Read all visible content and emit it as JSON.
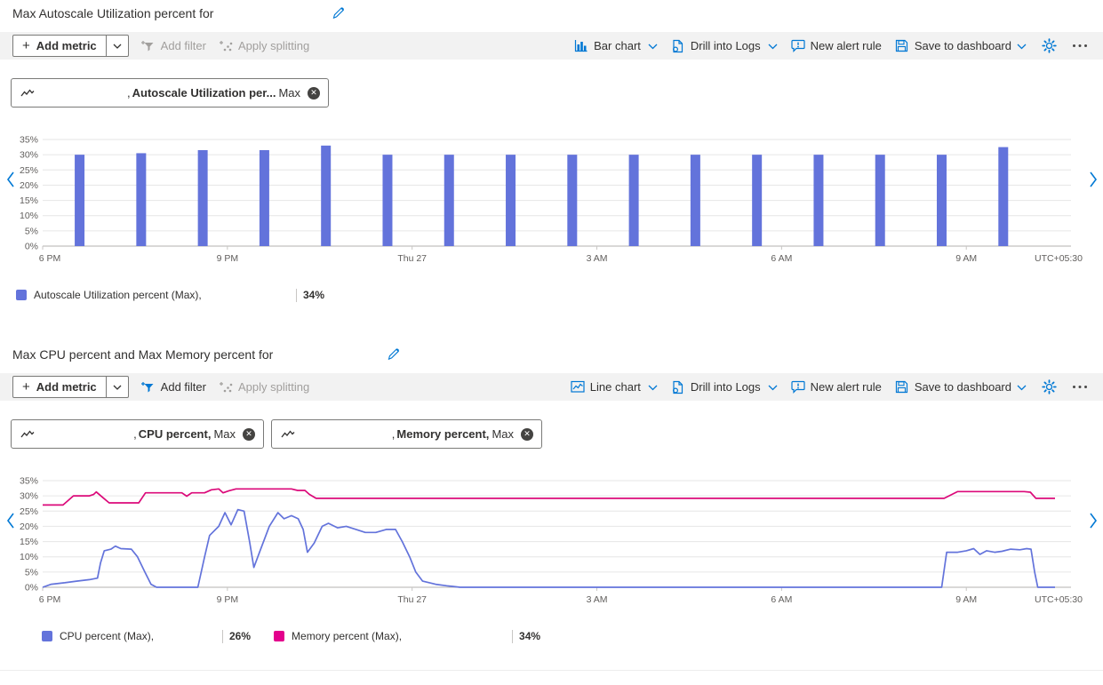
{
  "colors": {
    "accent_blue": "#0078d4",
    "series_blue": "#6373db",
    "series_pink": "#db0979",
    "legend_pink": "#e3008c",
    "toolbar_bg": "#f2f2f2",
    "disabled_gray": "#a19f9d"
  },
  "sections": [
    {
      "title": "Max Autoscale Utilization percent for",
      "toolbar": {
        "add_metric": "Add metric",
        "add_filter": "Add filter",
        "apply_splitting": "Apply splitting",
        "chart_type": "Bar chart",
        "drill_into_logs": "Drill into Logs",
        "new_alert_rule": "New alert rule",
        "save_to_dashboard": "Save to dashboard"
      },
      "pills": [
        {
          "prefix": ",",
          "metric": "Autoscale Utilization per...",
          "aggregation": "Max"
        }
      ],
      "legend": [
        {
          "label": "Autoscale Utilization percent (Max),",
          "value": "34%",
          "color": "#6373db"
        }
      ]
    },
    {
      "title": "Max CPU percent and Max Memory percent for",
      "toolbar": {
        "add_metric": "Add metric",
        "add_filter": "Add filter",
        "apply_splitting": "Apply splitting",
        "chart_type": "Line chart",
        "drill_into_logs": "Drill into Logs",
        "new_alert_rule": "New alert rule",
        "save_to_dashboard": "Save to dashboard"
      },
      "pills": [
        {
          "prefix": ",",
          "metric": "CPU percent,",
          "aggregation": "Max"
        },
        {
          "prefix": ",",
          "metric": "Memory percent,",
          "aggregation": "Max"
        }
      ],
      "legend": [
        {
          "label": "CPU percent (Max),",
          "value": "26%",
          "color": "#6373db"
        },
        {
          "label": "Memory percent (Max),",
          "value": "34%",
          "color": "#e3008c"
        }
      ]
    }
  ],
  "chart_data": [
    {
      "type": "bar",
      "title": "Max Autoscale Utilization percent",
      "ylabel": "%",
      "ylim": [
        0,
        35
      ],
      "ytick_step": 5,
      "x_hours_range": [
        0,
        16.7
      ],
      "x_ticks": [
        {
          "hour": 0,
          "label": "6 PM"
        },
        {
          "hour": 3,
          "label": "9 PM"
        },
        {
          "hour": 6,
          "label": "Thu 27"
        },
        {
          "hour": 9,
          "label": "3 AM"
        },
        {
          "hour": 12,
          "label": "6 AM"
        },
        {
          "hour": 15,
          "label": "9 AM"
        }
      ],
      "timezone_label": "UTC+05:30",
      "grid": true,
      "series": [
        {
          "name": "Autoscale Utilization percent (Max)",
          "color": "#6373db",
          "points": [
            [
              0.6,
              30
            ],
            [
              1.6,
              30.5
            ],
            [
              2.6,
              31.5
            ],
            [
              3.6,
              31.5
            ],
            [
              4.6,
              33
            ],
            [
              5.6,
              30
            ],
            [
              6.6,
              30
            ],
            [
              7.6,
              30
            ],
            [
              8.6,
              30
            ],
            [
              9.6,
              30
            ],
            [
              10.6,
              30
            ],
            [
              11.6,
              30
            ],
            [
              12.6,
              30
            ],
            [
              13.6,
              30
            ],
            [
              14.6,
              30
            ],
            [
              15.6,
              32.5
            ]
          ]
        }
      ]
    },
    {
      "type": "line",
      "title": "Max CPU percent and Max Memory percent",
      "ylabel": "%",
      "ylim": [
        0,
        35
      ],
      "ytick_step": 5,
      "x_hours_range": [
        0,
        16.7
      ],
      "x_ticks": [
        {
          "hour": 0,
          "label": "6 PM"
        },
        {
          "hour": 3,
          "label": "9 PM"
        },
        {
          "hour": 6,
          "label": "Thu 27"
        },
        {
          "hour": 9,
          "label": "3 AM"
        },
        {
          "hour": 12,
          "label": "6 AM"
        },
        {
          "hour": 15,
          "label": "9 AM"
        }
      ],
      "timezone_label": "UTC+05:30",
      "grid": true,
      "series": [
        {
          "name": "CPU percent (Max)",
          "color": "#6373db",
          "points": [
            [
              0,
              0
            ],
            [
              0.14,
              1
            ],
            [
              0.36,
              1.5
            ],
            [
              0.55,
              2
            ],
            [
              0.76,
              2.5
            ],
            [
              0.89,
              3
            ],
            [
              0.94,
              8
            ],
            [
              1,
              12
            ],
            [
              1.11,
              12.5
            ],
            [
              1.18,
              13.5
            ],
            [
              1.27,
              12.7
            ],
            [
              1.44,
              12.5
            ],
            [
              1.54,
              10
            ],
            [
              1.66,
              5
            ],
            [
              1.76,
              1
            ],
            [
              1.85,
              0
            ],
            [
              2.52,
              0
            ],
            [
              2.63,
              10
            ],
            [
              2.71,
              17
            ],
            [
              2.86,
              20
            ],
            [
              2.96,
              24.5
            ],
            [
              3.06,
              20.5
            ],
            [
              3.17,
              25.5
            ],
            [
              3.27,
              25
            ],
            [
              3.36,
              15
            ],
            [
              3.43,
              6.5
            ],
            [
              3.53,
              12
            ],
            [
              3.68,
              20
            ],
            [
              3.82,
              24.5
            ],
            [
              3.92,
              22.5
            ],
            [
              4.04,
              23.5
            ],
            [
              4.15,
              22.5
            ],
            [
              4.23,
              19
            ],
            [
              4.3,
              11.5
            ],
            [
              4.41,
              14.5
            ],
            [
              4.54,
              20
            ],
            [
              4.64,
              21
            ],
            [
              4.79,
              19.5
            ],
            [
              4.93,
              20
            ],
            [
              5.09,
              19
            ],
            [
              5.24,
              18
            ],
            [
              5.41,
              18
            ],
            [
              5.58,
              19
            ],
            [
              5.73,
              19
            ],
            [
              5.84,
              15
            ],
            [
              5.96,
              10
            ],
            [
              6.06,
              5
            ],
            [
              6.17,
              2
            ],
            [
              6.38,
              1
            ],
            [
              6.56,
              0.5
            ],
            [
              6.78,
              0
            ],
            [
              14.6,
              0
            ],
            [
              14.68,
              11.5
            ],
            [
              14.86,
              11.5
            ],
            [
              15,
              12
            ],
            [
              15.12,
              12.7
            ],
            [
              15.22,
              10.8
            ],
            [
              15.33,
              12
            ],
            [
              15.46,
              11.5
            ],
            [
              15.58,
              11.8
            ],
            [
              15.72,
              12.5
            ],
            [
              15.87,
              12.3
            ],
            [
              15.98,
              12.7
            ],
            [
              16.05,
              12.5
            ],
            [
              16.11,
              5
            ],
            [
              16.16,
              0
            ],
            [
              16.44,
              0
            ]
          ]
        },
        {
          "name": "Memory percent (Max)",
          "color": "#db0979",
          "points": [
            [
              0,
              27
            ],
            [
              0.33,
              27
            ],
            [
              0.5,
              30
            ],
            [
              0.76,
              30
            ],
            [
              0.83,
              30.5
            ],
            [
              0.87,
              31.3
            ],
            [
              0.98,
              29.4
            ],
            [
              1.08,
              27.7
            ],
            [
              1.56,
              27.7
            ],
            [
              1.67,
              31
            ],
            [
              2.26,
              31
            ],
            [
              2.34,
              29.9
            ],
            [
              2.42,
              31
            ],
            [
              2.63,
              31
            ],
            [
              2.74,
              32
            ],
            [
              2.86,
              32.3
            ],
            [
              2.93,
              31
            ],
            [
              3.03,
              31.7
            ],
            [
              3.14,
              32.3
            ],
            [
              4.04,
              32.3
            ],
            [
              4.14,
              31.8
            ],
            [
              4.26,
              31.8
            ],
            [
              4.33,
              30.5
            ],
            [
              4.44,
              29.2
            ],
            [
              14.64,
              29.2
            ],
            [
              14.86,
              31.4
            ],
            [
              15.94,
              31.4
            ],
            [
              16.04,
              31.2
            ],
            [
              16.13,
              29.2
            ],
            [
              16.44,
              29.2
            ]
          ]
        }
      ]
    }
  ]
}
